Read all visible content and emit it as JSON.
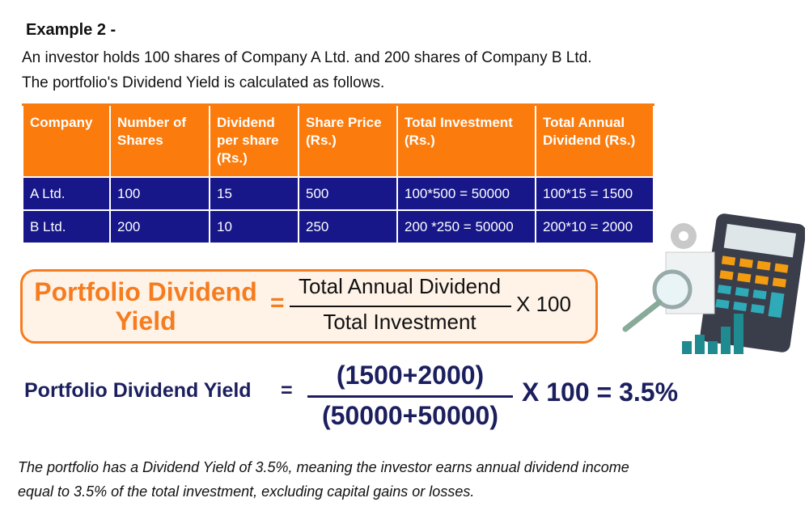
{
  "heading": "Example 2 -",
  "intro": [
    "An investor holds 100 shares of Company A Ltd. and 200 shares of Company B Ltd.",
    "The portfolio's Dividend Yield is calculated as follows."
  ],
  "table": {
    "header": [
      "Company",
      "Number of Shares",
      "Dividend per share (Rs.)",
      "Share Price (Rs.)",
      "Total Investment (Rs.)",
      "Total Annual Dividend (Rs.)"
    ],
    "rows": [
      [
        "A Ltd.",
        "100",
        "15",
        "500",
        "100*500 = 50000",
        "100*15 = 1500"
      ],
      [
        "B Ltd.",
        "200",
        "10",
        "250",
        "200 *250 = 50000",
        "200*10 = 2000"
      ]
    ]
  },
  "formula": {
    "label": "Portfolio Dividend Yield",
    "equals": "=",
    "numerator": "Total Annual Dividend",
    "denominator": "Total Investment",
    "multiplier": "X 100"
  },
  "calculation": {
    "label": "Portfolio Dividend Yield",
    "equals": "=",
    "numerator": "(1500+2000)",
    "denominator": "(50000+50000)",
    "result": "X 100 = 3.5%"
  },
  "conclusion": [
    "The portfolio has a Dividend Yield of 3.5%, meaning the investor earns annual dividend income",
    "equal to 3.5% of the total investment, excluding capital gains or losses."
  ]
}
